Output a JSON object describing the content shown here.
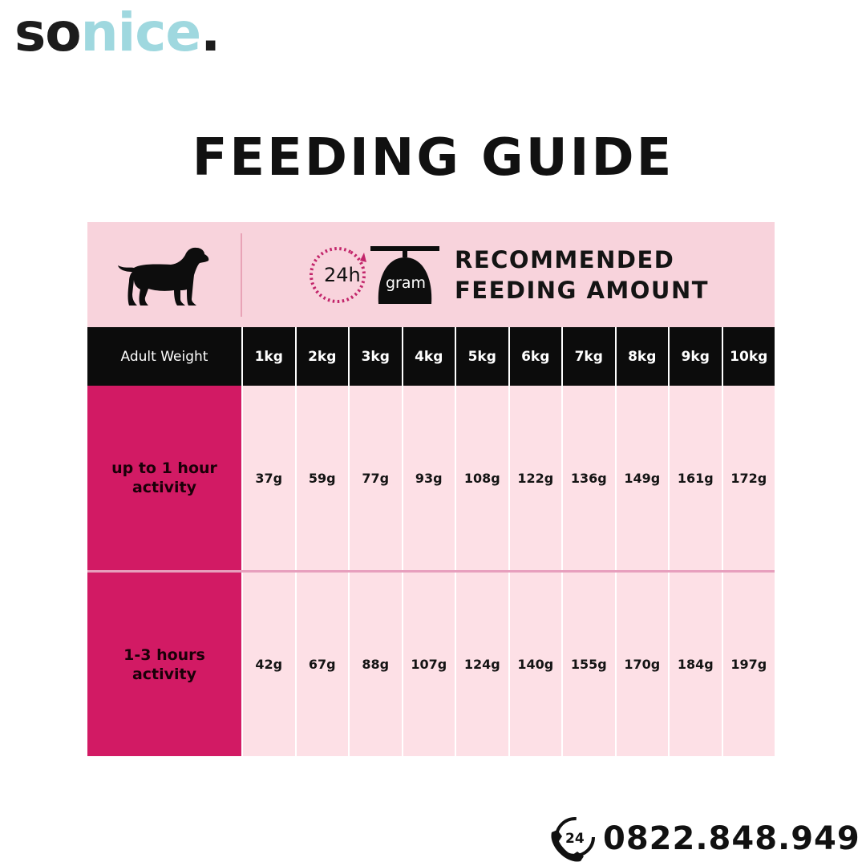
{
  "brand": {
    "logo_part1": "so",
    "logo_part2": "nice",
    "logo_dot": "."
  },
  "title": "FEEDING GUIDE",
  "banner": {
    "clock_text": "24h",
    "scale_text": "gram",
    "recommended_line1": "RECOMMENDED",
    "recommended_line2": "FEEDING AMOUNT"
  },
  "table": {
    "header_label": "Adult Weight",
    "weights": [
      "1kg",
      "2kg",
      "3kg",
      "4kg",
      "5kg",
      "6kg",
      "7kg",
      "8kg",
      "9kg",
      "10kg"
    ],
    "rows": [
      {
        "label": "up to 1 hour\nactivity",
        "values": [
          "37g",
          "59g",
          "77g",
          "93g",
          "108g",
          "122g",
          "136g",
          "149g",
          "161g",
          "172g"
        ]
      },
      {
        "label": "1-3 hours\nactivity",
        "values": [
          "42g",
          "67g",
          "88g",
          "107g",
          "124g",
          "140g",
          "155g",
          "170g",
          "184g",
          "197g"
        ]
      }
    ]
  },
  "contact": {
    "badge": "24",
    "phone": "0822.848.949"
  },
  "colors": {
    "accent": "#d21a64",
    "banner_bg": "#f8d3dc",
    "cell_bg": "#fde0e6",
    "header_bg": "#0c0c0c",
    "logo_teal": "#9fd8df"
  }
}
